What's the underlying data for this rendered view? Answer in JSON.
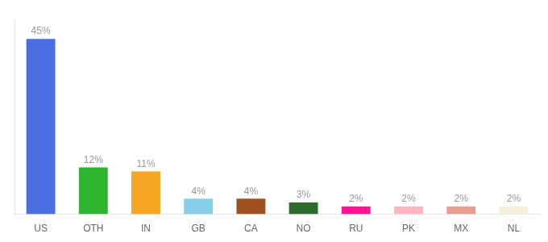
{
  "chart_data": {
    "type": "bar",
    "categories": [
      "US",
      "OTH",
      "IN",
      "GB",
      "CA",
      "NO",
      "RU",
      "PK",
      "MX",
      "NL"
    ],
    "values": [
      45,
      12,
      11,
      4,
      4,
      3,
      2,
      2,
      2,
      2
    ],
    "value_labels": [
      "45%",
      "12%",
      "11%",
      "4%",
      "4%",
      "3%",
      "2%",
      "2%",
      "2%",
      "2%"
    ],
    "colors": [
      "#4a6fe3",
      "#2db52d",
      "#f5a623",
      "#87ceeb",
      "#a05020",
      "#2d6b2d",
      "#ff1493",
      "#ffb6c1",
      "#e8a090",
      "#f5f0dc"
    ],
    "ylim": [
      0,
      50
    ],
    "grid": false,
    "data_labels": true,
    "tick_labels": "x"
  }
}
